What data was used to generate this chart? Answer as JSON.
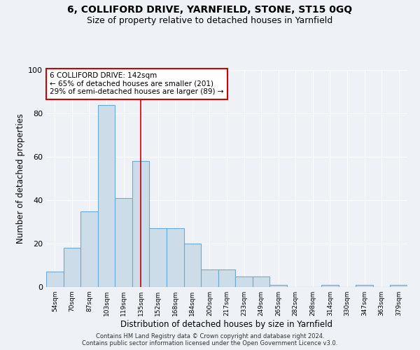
{
  "title1": "6, COLLIFORD DRIVE, YARNFIELD, STONE, ST15 0GQ",
  "title2": "Size of property relative to detached houses in Yarnfield",
  "xlabel": "Distribution of detached houses by size in Yarnfield",
  "ylabel": "Number of detached properties",
  "bar_color": "#ccdce8",
  "bar_edge_color": "#6aaad4",
  "categories": [
    "54sqm",
    "70sqm",
    "87sqm",
    "103sqm",
    "119sqm",
    "135sqm",
    "152sqm",
    "168sqm",
    "184sqm",
    "200sqm",
    "217sqm",
    "233sqm",
    "249sqm",
    "265sqm",
    "282sqm",
    "298sqm",
    "314sqm",
    "330sqm",
    "347sqm",
    "363sqm",
    "379sqm"
  ],
  "values": [
    7,
    18,
    35,
    84,
    41,
    58,
    27,
    27,
    20,
    8,
    8,
    5,
    5,
    1,
    0,
    0,
    1,
    0,
    1,
    0,
    1
  ],
  "ylim": [
    0,
    100
  ],
  "yticks": [
    0,
    20,
    40,
    60,
    80,
    100
  ],
  "annotation_text": "6 COLLIFORD DRIVE: 142sqm\n← 65% of detached houses are smaller (201)\n29% of semi-detached houses are larger (89) →",
  "annotation_box_color": "#ffffff",
  "annotation_box_edge": "#cc0000",
  "vline_x": 5,
  "vline_color": "#cc0000",
  "background_color": "#eef2f7",
  "footer": "Contains HM Land Registry data © Crown copyright and database right 2024.\nContains public sector information licensed under the Open Government Licence v3.0.",
  "grid_color": "#ffffff",
  "title1_fontsize": 10,
  "title2_fontsize": 9,
  "xlabel_fontsize": 8.5,
  "ylabel_fontsize": 8.5,
  "annot_fontsize": 7.5
}
